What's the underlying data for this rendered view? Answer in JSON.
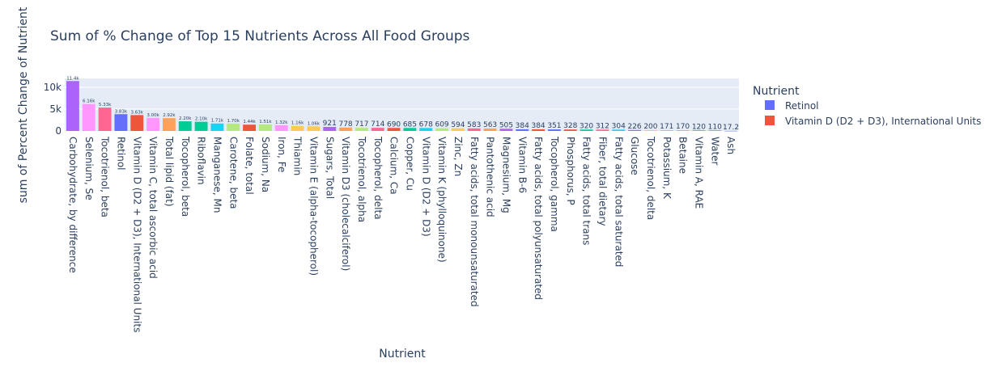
{
  "chart_data": {
    "type": "bar",
    "title": "Sum of % Change of Top 15 Nutrients Across All Food Groups",
    "xlabel": "Nutrient",
    "ylabel": "sum of Percent Change of Nutrient",
    "ylim": [
      0,
      12000
    ],
    "yticks": [
      0,
      5000,
      10000
    ],
    "ytick_labels": [
      "0",
      "5k",
      "10k"
    ],
    "grid": true,
    "legend": {
      "title": "Nutrient",
      "placement": "right",
      "entries": [
        {
          "name": "Retinol",
          "color": "#636efa"
        },
        {
          "name": "Vitamin D (D2 + D3), International Units",
          "color": "#ef553b"
        }
      ]
    },
    "categories": [
      "Carbohydrate, by difference",
      "Selenium, Se",
      "Tocotrienol, beta",
      "Retinol",
      "Vitamin D (D2 + D3), International Units",
      "Vitamin C, total ascorbic acid",
      "Total lipid (fat)",
      "Tocopherol, beta",
      "Riboflavin",
      "Manganese, Mn",
      "Carotene, beta",
      "Folate, total",
      "Sodium, Na",
      "Iron, Fe",
      "Thiamin",
      "Vitamin E (alpha-tocopherol)",
      "Sugars, Total",
      "Vitamin D3 (cholecalciferol)",
      "Tocotrienol, alpha",
      "Tocopherol, delta",
      "Calcium, Ca",
      "Copper, Cu",
      "Vitamin D (D2 + D3)",
      "Vitamin K (phylloquinone)",
      "Zinc, Zn",
      "Fatty acids, total monounsaturated",
      "Pantothenic acid",
      "Magnesium, Mg",
      "Vitamin B-6",
      "Fatty acids, total polyunsaturated",
      "Tocopherol, gamma",
      "Phosphorus, P",
      "Fatty acids, total trans",
      "Fiber, total dietary",
      "Fatty acids, total saturated",
      "Glucose",
      "Tocotrienol, delta",
      "Potassium, K",
      "Betaine",
      "Vitamin A, RAE",
      "Water",
      "Ash"
    ],
    "values": [
      11400,
      6160,
      5330,
      3830,
      3630,
      3000,
      2920,
      2200,
      2100,
      1710,
      1700,
      1440,
      1510,
      1320,
      1160,
      1060,
      921,
      778,
      717,
      714,
      690,
      685,
      678,
      609,
      594,
      583,
      563,
      505,
      384,
      384,
      351,
      328,
      320,
      312,
      304,
      226,
      200,
      171,
      170,
      120,
      110,
      17.2
    ],
    "data_labels": [
      "11.4k",
      "6.16k",
      "5.33k",
      "3.83k",
      "3.63k",
      "3.00k",
      "2.92k",
      "2.20k",
      "2.10k",
      "1.71k",
      "1.70k",
      "1.44k",
      "1.51k",
      "1.32k",
      "1.16k",
      "1.06k",
      "921",
      "778",
      "717",
      "714",
      "690",
      "685",
      "678",
      "609",
      "594",
      "583",
      "563",
      "505",
      "384",
      "384",
      "351",
      "328",
      "320",
      "312",
      "304",
      "226",
      "200",
      "171",
      "170",
      "120",
      "110",
      "17.2"
    ],
    "colors": [
      "#ab63fa",
      "#ff97ff",
      "#ff6692",
      "#636efa",
      "#ef553b",
      "#ff97ff",
      "#ffa15a",
      "#00cc96",
      "#00cc96",
      "#19d3f3",
      "#b6e880",
      "#ef553b",
      "#b6e880",
      "#ff97ff",
      "#fecb52",
      "#fecb52",
      "#ab63fa",
      "#ffa15a",
      "#b6e880",
      "#ff6692",
      "#ef553b",
      "#00cc96",
      "#19d3f3",
      "#b6e880",
      "#fecb52",
      "#ff6692",
      "#ffa15a",
      "#ab63fa",
      "#636efa",
      "#ef553b",
      "#636efa",
      "#ef553b",
      "#00cc96",
      "#ff6692",
      "#19d3f3",
      "#ab63fa",
      "#fecb52",
      "#ffa15a",
      "#ffa15a",
      "#636efa",
      "#636efa",
      "#636efa"
    ]
  }
}
